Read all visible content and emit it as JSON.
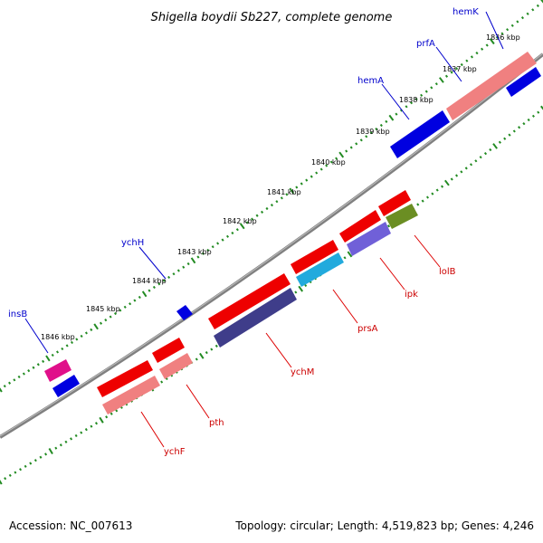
{
  "title": "Shigella boydii Sb227, complete genome",
  "footer": {
    "accession": "Accession: NC_007613",
    "summary": "Topology: circular; Length: 4,519,823 bp; Genes: 4,246"
  },
  "scale": [
    {
      "label": "1836 kbp"
    },
    {
      "label": "1837 kbp"
    },
    {
      "label": "1838 kbp"
    },
    {
      "label": "1839 kbp"
    },
    {
      "label": "1840 kbp"
    },
    {
      "label": "1841 kbp"
    },
    {
      "label": "1842 kbp"
    },
    {
      "label": "1843 kbp"
    },
    {
      "label": "1844 kbp"
    },
    {
      "label": "1845 kbp"
    },
    {
      "label": "1846 kbp"
    }
  ],
  "genes_top": [
    {
      "name": "hemK"
    },
    {
      "name": "prfA"
    },
    {
      "name": "hemA"
    },
    {
      "name": "ychH"
    },
    {
      "name": "insB"
    }
  ],
  "genes_bottom": [
    {
      "name": "lolB"
    },
    {
      "name": "ipk"
    },
    {
      "name": "prsA"
    },
    {
      "name": "ychM"
    },
    {
      "name": "pth"
    },
    {
      "name": "ychF"
    }
  ],
  "colors": {
    "backbone": "#7f7f7f",
    "ticks": "#228b22",
    "gene_blue": "#0000e0",
    "gene_red": "#ee0000",
    "gene_pink": "#f08080",
    "gene_navy": "#3f3d8a",
    "gene_cyan": "#22aadd",
    "gene_purple": "#7060d8",
    "gene_olive": "#6b8e23",
    "gene_magenta": "#e0108a"
  }
}
